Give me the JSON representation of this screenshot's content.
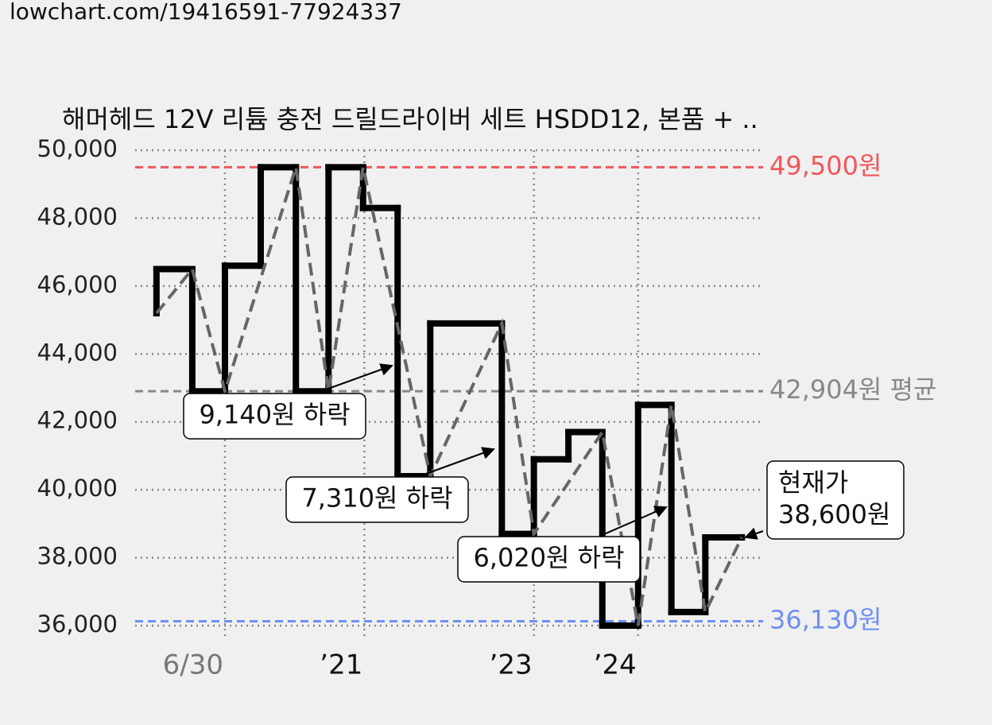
{
  "header": "lowchart.com/19416591-77924337",
  "chart_data": {
    "type": "step",
    "title": "해머헤드 12V 리튬 충전 드릴드라이버 세트 HSDD12, 본품 + ..",
    "xlim": [
      0,
      100
    ],
    "ylim": [
      36000,
      50000
    ],
    "yticks": [
      {
        "value": 36000,
        "label": "36,000"
      },
      {
        "value": 38000,
        "label": "38,000"
      },
      {
        "value": 40000,
        "label": "40,000"
      },
      {
        "value": 42000,
        "label": "42,000"
      },
      {
        "value": 44000,
        "label": "44,000"
      },
      {
        "value": 46000,
        "label": "46,000"
      },
      {
        "value": 48000,
        "label": "48,000"
      },
      {
        "value": 50000,
        "label": "50,000"
      }
    ],
    "xticks": [
      {
        "value": 14.3,
        "label": "6/30"
      },
      {
        "value": 36.5,
        "label": "’21"
      },
      {
        "value": 63.5,
        "label": "’23"
      },
      {
        "value": 80.1,
        "label": "’24"
      }
    ],
    "grid": true,
    "series": [
      {
        "color": "#000000",
        "x": [
          3.4,
          3.4,
          9.1,
          14.3,
          20,
          25.6,
          30.8,
          36.3,
          41.8,
          47,
          58.4,
          63.5,
          69,
          74.4,
          80.1,
          85.4,
          90.8,
          96.6
        ],
        "values": [
          45200,
          46500,
          42900,
          46600,
          49500,
          42900,
          49500,
          48300,
          40400,
          44900,
          38700,
          40900,
          41700,
          36000,
          42500,
          36400,
          38600,
          38600
        ]
      },
      {
        "color": "#666666",
        "x": [
          3.4,
          9.1,
          14.3,
          25.6,
          30.8,
          36.3,
          47,
          58.4,
          63.5,
          74.4,
          80.1,
          85.4,
          90.8,
          96.6
        ],
        "values": [
          45200,
          46500,
          42900,
          49500,
          42900,
          49500,
          40400,
          44900,
          38700,
          41700,
          36000,
          42500,
          36400,
          38600
        ]
      }
    ],
    "ref_lines": [
      {
        "value": 49500,
        "label": "49,500원",
        "color": "#f0565a"
      },
      {
        "value": 42904,
        "label": "42,904원 평균",
        "color": "#888888"
      },
      {
        "value": 36130,
        "label": "36,130원",
        "color": "#6f8ff0"
      }
    ],
    "annotations": [
      {
        "lines": [
          "9,140원 하락"
        ]
      },
      {
        "lines": [
          "7,310원 하락"
        ]
      },
      {
        "lines": [
          "6,020원 하락"
        ]
      },
      {
        "lines": [
          "현재가",
          "38,600원"
        ]
      }
    ]
  }
}
